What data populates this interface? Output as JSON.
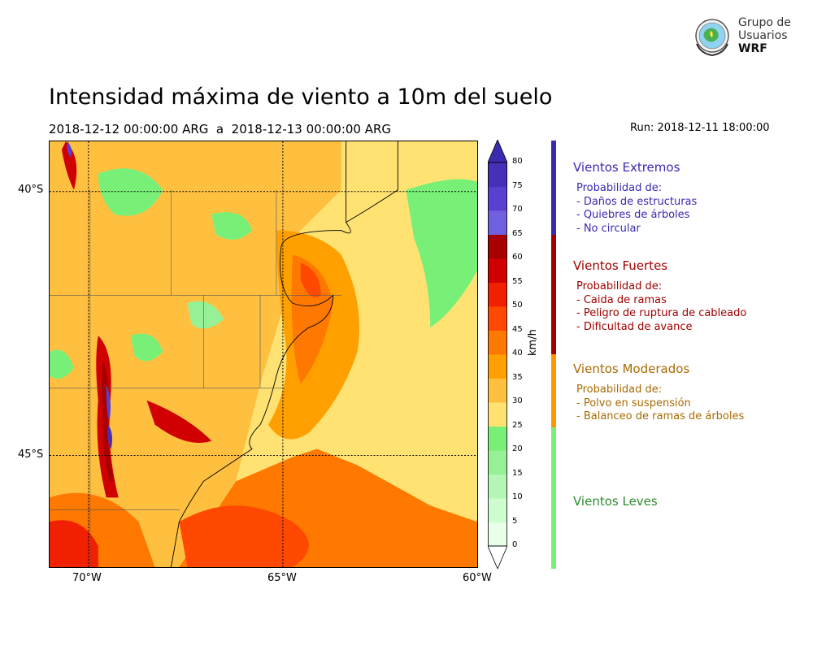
{
  "header": {
    "title": "Intensidad máxima de viento a 10m del suelo",
    "period": "2018-12-12 00:00:00 ARG  a  2018-12-13 00:00:00 ARG",
    "run": "Run: 2018-12-11 18:00:00"
  },
  "logo": {
    "line1": "Grupo de",
    "line2": "Usuarios",
    "line3": "WRF"
  },
  "map": {
    "lat_labels": [
      "40°S",
      "45°S"
    ],
    "lon_labels": [
      "70°W",
      "65°W",
      "60°W"
    ]
  },
  "colorbar": {
    "unit": "km/h",
    "ticks": [
      "80",
      "75",
      "70",
      "65",
      "60",
      "55",
      "50",
      "45",
      "40",
      "35",
      "30",
      "25",
      "20",
      "15",
      "10",
      "5",
      "0"
    ],
    "levels": [
      0,
      5,
      10,
      15,
      20,
      25,
      30,
      35,
      40,
      45,
      50,
      55,
      60,
      65,
      70,
      75,
      80
    ],
    "colors": [
      "#e8ffe8",
      "#cffccf",
      "#b4f7b4",
      "#96f096",
      "#78f078",
      "#ffe272",
      "#ffc040",
      "#ffa000",
      "#ff7800",
      "#ff4800",
      "#f02000",
      "#d00000",
      "#a80000",
      "#7060e0",
      "#5a40d0",
      "#4630b8"
    ]
  },
  "legend": {
    "categories": [
      {
        "title": "Vientos Extremos",
        "color": "#3a2ab0",
        "lines": [
          "Probabilidad de:",
          "- Daños de estructuras",
          "- Quiebres de árboles",
          "- No circular"
        ]
      },
      {
        "title": "Vientos Fuertes",
        "color": "#a00000",
        "lines": [
          "Probabilidad de:",
          "- Caida de ramas",
          "- Peligro de ruptura de cableado",
          "- Dificultad de avance"
        ]
      },
      {
        "title": "Vientos Moderados",
        "color": "#a86a00",
        "lines": [
          "Probabilidad de:",
          "- Polvo en suspensión",
          "- Balanceo de ramas de árboles"
        ]
      },
      {
        "title": "Vientos Leves",
        "color": "#2e8b2e",
        "lines": []
      }
    ]
  }
}
